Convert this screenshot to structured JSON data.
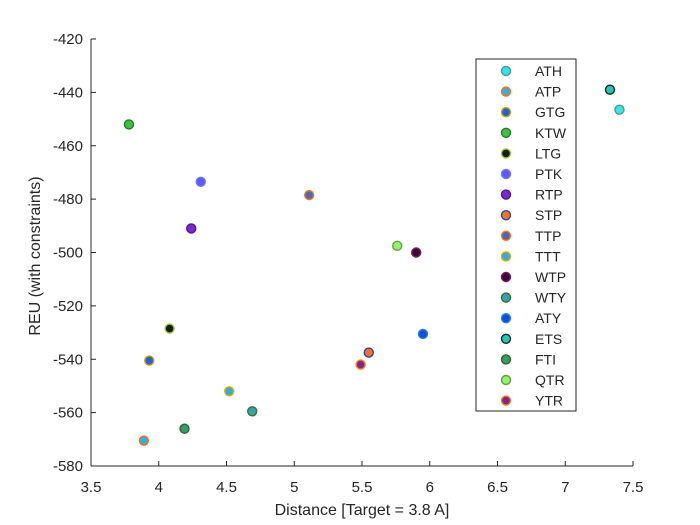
{
  "chart_data": {
    "type": "scatter",
    "title": "",
    "xlabel": "Distance [Target = 3.8 A]",
    "ylabel": "REU (with constraints)",
    "xlim": [
      3.5,
      7.5
    ],
    "ylim": [
      -580,
      -420
    ],
    "xticks": [
      "3.5",
      "4",
      "4.5",
      "5",
      "5.5",
      "6",
      "6.5",
      "7",
      "7.5"
    ],
    "yticks": [
      "-420",
      "-440",
      "-460",
      "-480",
      "-500",
      "-520",
      "-540",
      "-560",
      "-580"
    ],
    "grid": false,
    "legend_position": "top-right",
    "series": [
      {
        "name": "ATH",
        "fill": "#3fe0e0",
        "edge": "#3fa0a0",
        "x": [
          7.4
        ],
        "y": [
          -446.5
        ]
      },
      {
        "name": "ATP",
        "fill": "#3ab0d0",
        "edge": "#ff6a1a",
        "x": [
          3.89
        ],
        "y": [
          -570.5
        ]
      },
      {
        "name": "GTG",
        "fill": "#2b5fd1",
        "edge": "#c8a000",
        "x": [
          3.93
        ],
        "y": [
          -540.5
        ]
      },
      {
        "name": "KTW",
        "fill": "#3fc03f",
        "edge": "#2a7a2a",
        "x": [
          3.78
        ],
        "y": [
          -452
        ]
      },
      {
        "name": "LTG",
        "fill": "#1a1a1a",
        "edge": "#9acd32",
        "x": [
          4.08
        ],
        "y": [
          -528.5
        ]
      },
      {
        "name": "PTK",
        "fill": "#5a5aff",
        "edge": "#7070ff",
        "x": [
          4.31
        ],
        "y": [
          -473.5
        ]
      },
      {
        "name": "RTP",
        "fill": "#7a28d0",
        "edge": "#4a1890",
        "x": [
          4.24
        ],
        "y": [
          -491
        ]
      },
      {
        "name": "STP",
        "fill": "#ff7020",
        "edge": "#2a4aa0",
        "x": [
          5.55
        ],
        "y": [
          -537.5
        ]
      },
      {
        "name": "TTP",
        "fill": "#4a6ab0",
        "edge": "#ff7020",
        "x": [
          5.11
        ],
        "y": [
          -478.5
        ]
      },
      {
        "name": "TTT",
        "fill": "#3aa8d8",
        "edge": "#d8b000",
        "x": [
          4.52
        ],
        "y": [
          -552
        ]
      },
      {
        "name": "WTP",
        "fill": "#3a0a3a",
        "edge": "#7a1a5a",
        "x": [
          5.9
        ],
        "y": [
          -500
        ]
      },
      {
        "name": "WTY",
        "fill": "#3aa0b0",
        "edge": "#2a7a2a",
        "x": [
          4.69
        ],
        "y": [
          -559.5
        ]
      },
      {
        "name": "ATY",
        "fill": "#1a4ad8",
        "edge": "#1a8ad8",
        "x": [
          5.95
        ],
        "y": [
          -530.5
        ]
      },
      {
        "name": "ETS",
        "fill": "#20c8b0",
        "edge": "#1a2a2a",
        "x": [
          7.33
        ],
        "y": [
          -439
        ]
      },
      {
        "name": "FTI",
        "fill": "#3a9a6a",
        "edge": "#2a6a2a",
        "x": [
          4.19
        ],
        "y": [
          -566
        ]
      },
      {
        "name": "QTR",
        "fill": "#90f070",
        "edge": "#6aa040",
        "x": [
          5.76
        ],
        "y": [
          -497.5
        ]
      },
      {
        "name": "YTR",
        "fill": "#7a2a8a",
        "edge": "#ff7a20",
        "x": [
          5.49
        ],
        "y": [
          -542
        ]
      }
    ]
  }
}
